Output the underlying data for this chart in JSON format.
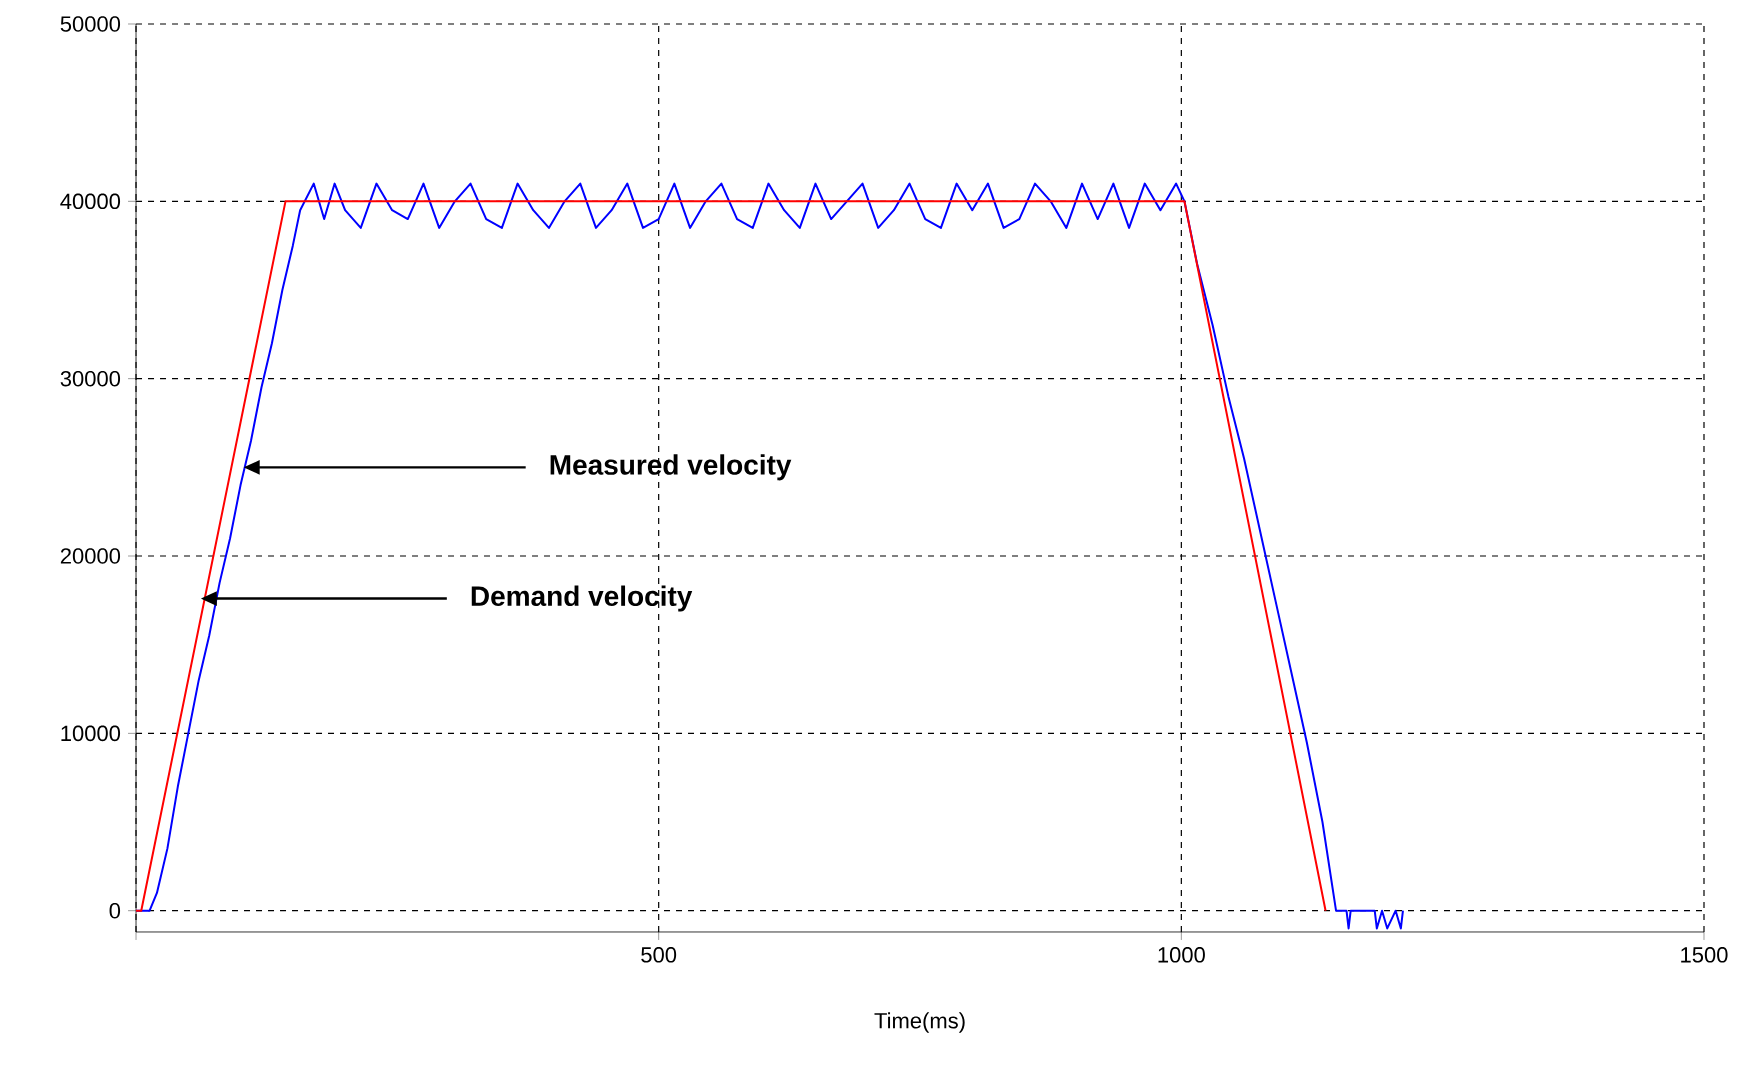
{
  "chart_data": {
    "type": "line",
    "xlabel": "Time(ms)",
    "xlim": [
      0,
      1500
    ],
    "ylim": [
      -1200,
      50000
    ],
    "xticks": [
      {
        "value": 0,
        "label": null
      },
      500,
      1000,
      1500
    ],
    "yticks": [
      0,
      10000,
      20000,
      30000,
      40000,
      50000
    ],
    "grid": true,
    "marker": "none",
    "line_style": "solid",
    "series": [
      {
        "color": "#0000ff",
        "x": [
          0,
          13,
          20,
          30,
          40,
          50,
          60,
          70,
          80,
          90,
          100,
          110,
          120,
          130,
          140,
          150,
          157,
          170,
          180,
          190,
          200,
          215,
          230,
          245,
          260,
          275,
          290,
          305,
          320,
          335,
          350,
          365,
          380,
          395,
          410,
          425,
          440,
          455,
          470,
          485,
          500,
          515,
          530,
          545,
          560,
          575,
          590,
          605,
          620,
          635,
          650,
          665,
          680,
          695,
          710,
          725,
          740,
          755,
          770,
          785,
          800,
          815,
          830,
          845,
          860,
          875,
          890,
          905,
          920,
          935,
          950,
          965,
          980,
          995,
          1003,
          1015,
          1030,
          1045,
          1060,
          1075,
          1090,
          1105,
          1120,
          1135,
          1148,
          1158,
          1160,
          1162,
          1170,
          1185,
          1187,
          1192,
          1197,
          1205,
          1210,
          1212
        ],
        "values": [
          0,
          0,
          1000,
          3500,
          7000,
          10000,
          13000,
          15500,
          18500,
          21000,
          24000,
          26500,
          29500,
          32000,
          35000,
          37500,
          39500,
          41000,
          39000,
          41000,
          39500,
          38500,
          41000,
          39500,
          39000,
          41000,
          38500,
          40000,
          41000,
          39000,
          38500,
          41000,
          39500,
          38500,
          40000,
          41000,
          38500,
          39500,
          41000,
          38500,
          39000,
          41000,
          38500,
          40000,
          41000,
          39000,
          38500,
          41000,
          39500,
          38500,
          41000,
          39000,
          40000,
          41000,
          38500,
          39500,
          41000,
          39000,
          38500,
          41000,
          39500,
          41000,
          38500,
          39000,
          41000,
          40000,
          38500,
          41000,
          39000,
          41000,
          38500,
          41000,
          39500,
          41000,
          40000,
          36500,
          33000,
          29000,
          25500,
          21500,
          17500,
          13500,
          9500,
          5000,
          0,
          0,
          -1000,
          0,
          0,
          0,
          -1000,
          0,
          -1000,
          0,
          -1000,
          0
        ]
      },
      {
        "color": "#ff0000",
        "x": [
          0,
          5,
          143,
          1003,
          1138
        ],
        "values": [
          0,
          0,
          40000,
          40000,
          0
        ]
      }
    ],
    "annotations": [
      {
        "text": "Measured velocity",
        "x": 103,
        "y": 25000
      },
      {
        "text": "Demand velocity",
        "x": 62,
        "y": 17600
      }
    ]
  }
}
